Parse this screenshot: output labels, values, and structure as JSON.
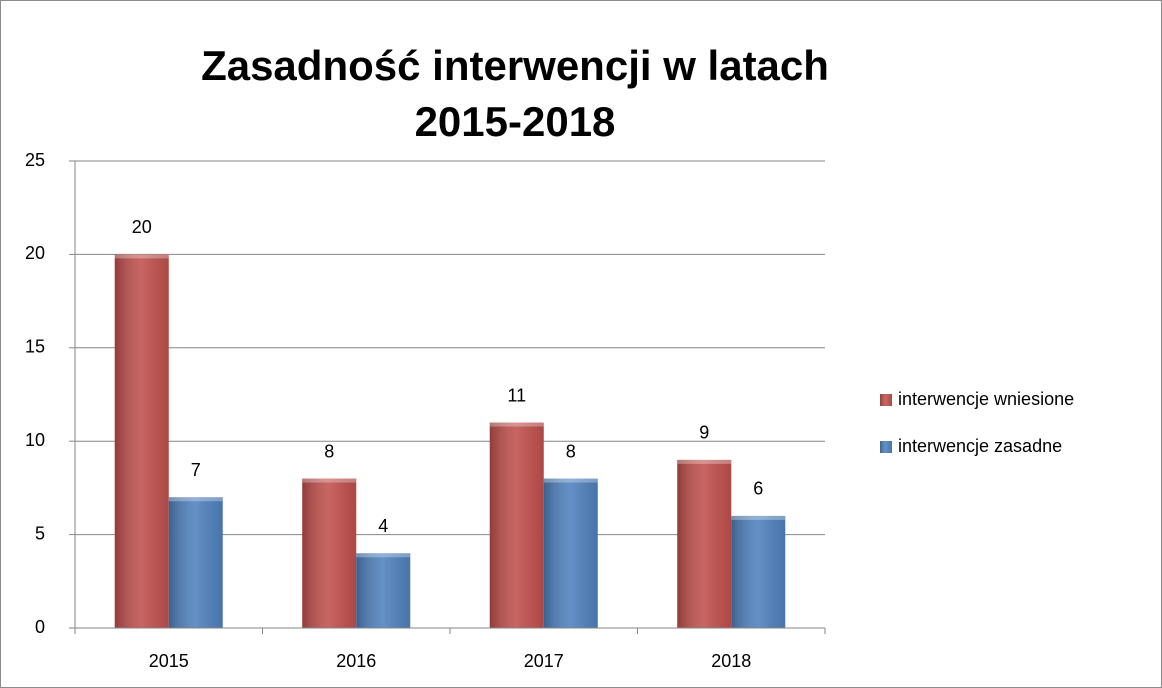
{
  "chart_data": {
    "type": "bar",
    "title": "Zasadność interwencji w latach 2015-2018",
    "categories": [
      "2015",
      "2016",
      "2017",
      "2018"
    ],
    "series": [
      {
        "name": "interwencje wniesione",
        "color": "#c0504d",
        "values": [
          20,
          8,
          11,
          9
        ]
      },
      {
        "name": "interwencje zasadne",
        "color": "#4f81bd",
        "values": [
          7,
          4,
          8,
          6
        ]
      }
    ],
    "ylim": [
      0,
      25
    ],
    "yticks": [
      0,
      5,
      10,
      15,
      20,
      25
    ],
    "grid": true,
    "legend": "right"
  }
}
